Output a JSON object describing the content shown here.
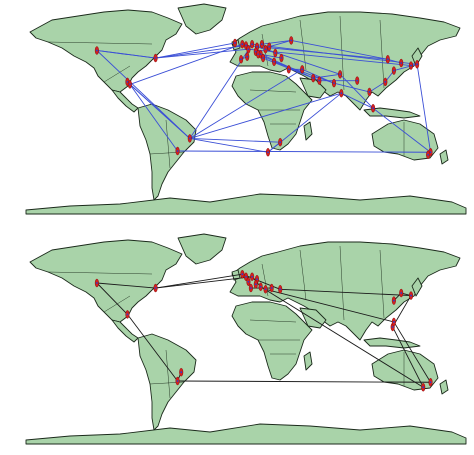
{
  "colors": {
    "land": "#a9d3a9",
    "coastline": "#1b2a1b",
    "node": "#d42020",
    "node_core": "#2a3dd0",
    "edges_top": "#3b4fd6",
    "edges_bottom": "#1a1a1a",
    "background": "#ffffff"
  },
  "panels": [
    {
      "id": "top",
      "projection": "equirectangular",
      "nodes": [
        {
          "lon": -122,
          "lat": 47
        },
        {
          "lon": -97,
          "lat": 22
        },
        {
          "lon": -95,
          "lat": 20
        },
        {
          "lon": -74,
          "lat": 41
        },
        {
          "lon": -46,
          "lat": -23
        },
        {
          "lon": -56,
          "lat": -33
        },
        {
          "lon": -9,
          "lat": 53
        },
        {
          "lon": -3,
          "lat": 52
        },
        {
          "lon": 0,
          "lat": 51
        },
        {
          "lon": 5,
          "lat": 52
        },
        {
          "lon": 9,
          "lat": 50
        },
        {
          "lon": 13,
          "lat": 52
        },
        {
          "lon": 2,
          "lat": 48
        },
        {
          "lon": 8,
          "lat": 46
        },
        {
          "lon": 12,
          "lat": 44
        },
        {
          "lon": 16,
          "lat": 48
        },
        {
          "lon": 19,
          "lat": 50
        },
        {
          "lon": 24,
          "lat": 45
        },
        {
          "lon": -4,
          "lat": 40
        },
        {
          "lon": 1,
          "lat": 42
        },
        {
          "lon": 10,
          "lat": 44
        },
        {
          "lon": 14,
          "lat": 41
        },
        {
          "lon": 23,
          "lat": 38
        },
        {
          "lon": 29,
          "lat": 41
        },
        {
          "lon": 37,
          "lat": 55
        },
        {
          "lon": 35,
          "lat": 32
        },
        {
          "lon": 46,
          "lat": 32
        },
        {
          "lon": 55,
          "lat": 25
        },
        {
          "lon": 60,
          "lat": 23
        },
        {
          "lon": 72,
          "lat": 21
        },
        {
          "lon": 77,
          "lat": 28
        },
        {
          "lon": 78,
          "lat": 13
        },
        {
          "lon": 91,
          "lat": 23
        },
        {
          "lon": 101,
          "lat": 14
        },
        {
          "lon": 104,
          "lat": 1
        },
        {
          "lon": 114,
          "lat": 22
        },
        {
          "lon": 116,
          "lat": 40
        },
        {
          "lon": 121,
          "lat": 31
        },
        {
          "lon": 127,
          "lat": 37
        },
        {
          "lon": 135,
          "lat": 35
        },
        {
          "lon": 140,
          "lat": 36
        },
        {
          "lon": 151,
          "lat": -34
        },
        {
          "lon": 149,
          "lat": -36
        },
        {
          "lon": 28,
          "lat": -26
        },
        {
          "lon": 18,
          "lat": -34
        }
      ],
      "edges": [
        [
          0,
          3
        ],
        [
          0,
          4
        ],
        [
          1,
          4
        ],
        [
          2,
          4
        ],
        [
          3,
          8
        ],
        [
          3,
          12
        ],
        [
          3,
          0
        ],
        [
          4,
          9
        ],
        [
          4,
          43
        ],
        [
          4,
          44
        ],
        [
          4,
          31
        ],
        [
          5,
          41
        ],
        [
          4,
          26
        ],
        [
          8,
          36
        ],
        [
          9,
          40
        ],
        [
          12,
          39
        ],
        [
          13,
          27
        ],
        [
          15,
          30
        ],
        [
          18,
          19
        ],
        [
          22,
          29
        ],
        [
          24,
          36
        ],
        [
          25,
          26
        ],
        [
          26,
          29
        ],
        [
          27,
          30
        ],
        [
          28,
          32
        ],
        [
          29,
          33
        ],
        [
          30,
          34
        ],
        [
          31,
          34
        ],
        [
          33,
          35
        ],
        [
          34,
          41
        ],
        [
          35,
          37
        ],
        [
          36,
          38
        ],
        [
          37,
          40
        ],
        [
          39,
          40
        ],
        [
          41,
          42
        ],
        [
          40,
          41
        ],
        [
          43,
          44
        ],
        [
          44,
          31
        ],
        [
          11,
          24
        ],
        [
          10,
          17
        ],
        [
          14,
          23
        ],
        [
          16,
          24
        ],
        [
          6,
          3
        ],
        [
          7,
          2
        ],
        [
          20,
          28
        ],
        [
          21,
          27
        ],
        [
          2,
          5
        ]
      ]
    },
    {
      "id": "bottom",
      "projection": "equirectangular",
      "nodes": [
        {
          "lon": -122,
          "lat": 45
        },
        {
          "lon": -97,
          "lat": 20
        },
        {
          "lon": -74,
          "lat": 41
        },
        {
          "lon": -56,
          "lat": -33
        },
        {
          "lon": -53,
          "lat": -26
        },
        {
          "lon": -3,
          "lat": 52
        },
        {
          "lon": 0,
          "lat": 50
        },
        {
          "lon": 5,
          "lat": 50
        },
        {
          "lon": 9,
          "lat": 48
        },
        {
          "lon": 2,
          "lat": 46
        },
        {
          "lon": 8,
          "lat": 44
        },
        {
          "lon": 12,
          "lat": 42
        },
        {
          "lon": 16,
          "lat": 40
        },
        {
          "lon": 4,
          "lat": 41
        },
        {
          "lon": 21,
          "lat": 41
        },
        {
          "lon": 28,
          "lat": 40
        },
        {
          "lon": 121,
          "lat": 31
        },
        {
          "lon": 127,
          "lat": 37
        },
        {
          "lon": 135,
          "lat": 35
        },
        {
          "lon": 120,
          "lat": 10
        },
        {
          "lon": 121,
          "lat": 14
        },
        {
          "lon": 151,
          "lat": -34
        },
        {
          "lon": 145,
          "lat": -38
        }
      ],
      "edges": [
        [
          0,
          2
        ],
        [
          0,
          1
        ],
        [
          1,
          3
        ],
        [
          2,
          7
        ],
        [
          3,
          21
        ],
        [
          4,
          3
        ],
        [
          5,
          15
        ],
        [
          7,
          11
        ],
        [
          11,
          22
        ],
        [
          12,
          20
        ],
        [
          15,
          18
        ],
        [
          16,
          17
        ],
        [
          17,
          18
        ],
        [
          18,
          19
        ],
        [
          19,
          22
        ],
        [
          20,
          21
        ],
        [
          8,
          10
        ],
        [
          13,
          14
        ],
        [
          6,
          9
        ],
        [
          2,
          5
        ]
      ]
    }
  ]
}
